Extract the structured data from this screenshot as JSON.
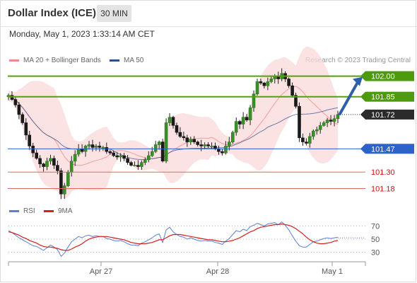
{
  "header": {
    "title": "Dollar Index (ICE)",
    "timeframe": "30 MIN",
    "datetime": "Monday, May 1, 2023 1:33:14 AM CET"
  },
  "legend": {
    "ma20_label": "MA 20 + Bollinger Bands",
    "ma20_color": "#f08a8a",
    "ma50_label": "MA 50",
    "ma50_color": "#2d4f8c",
    "research": "Research © 2023 Trading Central"
  },
  "rsi_legend": {
    "rsi_label": "RSI",
    "rsi_color": "#5b7fd4",
    "ma_label": "9MA",
    "ma_color": "#d42020"
  },
  "chart_data": [
    {
      "type": "candlestick",
      "title": "Dollar Index (ICE) 30 MIN",
      "x_ticks": [
        "Apr 27",
        "Apr 28",
        "May 1"
      ],
      "ylim": [
        101.1,
        102.06
      ],
      "levels": [
        {
          "value": 102.0,
          "label": "102.00",
          "kind": "resistance"
        },
        {
          "value": 101.85,
          "label": "101.85",
          "kind": "resistance"
        },
        {
          "value": 101.72,
          "label": "101.72",
          "kind": "last"
        },
        {
          "value": 101.47,
          "label": "101.47",
          "kind": "pivot"
        },
        {
          "value": 101.3,
          "label": "101.30",
          "kind": "support"
        },
        {
          "value": 101.18,
          "label": "101.18",
          "kind": "support"
        }
      ],
      "closes": [
        101.86,
        101.83,
        101.79,
        101.72,
        101.66,
        101.57,
        101.49,
        101.44,
        101.4,
        101.36,
        101.34,
        101.38,
        101.4,
        101.35,
        101.31,
        101.14,
        101.2,
        101.3,
        101.38,
        101.43,
        101.47,
        101.45,
        101.49,
        101.5,
        101.48,
        101.49,
        101.48,
        101.48,
        101.45,
        101.44,
        101.42,
        101.41,
        101.42,
        101.4,
        101.37,
        101.35,
        101.35,
        101.34,
        101.37,
        101.39,
        101.42,
        101.45,
        101.5,
        101.52,
        101.38,
        101.66,
        101.7,
        101.64,
        101.59,
        101.56,
        101.55,
        101.52,
        101.54,
        101.52,
        101.5,
        101.49,
        101.5,
        101.49,
        101.49,
        101.47,
        101.45,
        101.44,
        101.49,
        101.52,
        101.59,
        101.67,
        101.65,
        101.7,
        101.68,
        101.77,
        101.87,
        101.96,
        101.95,
        101.93,
        101.96,
        101.98,
        102.0,
        101.98,
        102.02,
        101.98,
        101.93,
        101.86,
        101.78,
        101.55,
        101.52,
        101.51,
        101.56,
        101.6,
        101.61,
        101.64,
        101.66,
        101.68,
        101.67,
        101.69,
        101.72
      ],
      "series": [
        {
          "name": "MA 20 + Bollinger Bands"
        },
        {
          "name": "MA 50"
        }
      ],
      "forecast_arrow": {
        "from": 101.72,
        "to": 102.0
      }
    },
    {
      "type": "line",
      "title": "RSI",
      "yticks": [
        70,
        50,
        30
      ],
      "ylim": [
        20,
        80
      ],
      "series": [
        {
          "name": "RSI",
          "values": [
            63,
            60,
            56,
            52,
            49,
            46,
            43,
            40,
            39,
            36,
            33,
            37,
            41,
            38,
            34,
            24,
            29,
            38,
            46,
            50,
            54,
            52,
            55,
            56,
            54,
            55,
            54,
            54,
            51,
            50,
            48,
            47,
            48,
            46,
            43,
            41,
            41,
            40,
            44,
            46,
            49,
            52,
            56,
            58,
            45,
            64,
            68,
            61,
            57,
            54,
            53,
            50,
            52,
            50,
            48,
            47,
            48,
            47,
            47,
            45,
            44,
            42,
            47,
            51,
            57,
            63,
            61,
            65,
            63,
            69,
            71,
            74,
            72,
            70,
            73,
            74,
            75,
            72,
            76,
            71,
            64,
            55,
            47,
            40,
            38,
            38,
            42,
            46,
            47,
            49,
            51,
            52,
            51,
            52,
            53
          ]
        },
        {
          "name": "9MA",
          "values": [
            61,
            60,
            58,
            56,
            53,
            51,
            48,
            46,
            44,
            41,
            39,
            38,
            38,
            37,
            36,
            34,
            33,
            33,
            35,
            38,
            40,
            43,
            47,
            50,
            52,
            53,
            54,
            54,
            54,
            53,
            52,
            51,
            50,
            49,
            47,
            45,
            44,
            43,
            43,
            43,
            44,
            45,
            47,
            49,
            49,
            52,
            55,
            57,
            57,
            57,
            56,
            55,
            54,
            53,
            52,
            51,
            50,
            49,
            49,
            48,
            47,
            46,
            46,
            47,
            48,
            50,
            52,
            55,
            58,
            61,
            63,
            66,
            68,
            69,
            70,
            71,
            72,
            72,
            73,
            72,
            71,
            69,
            66,
            62,
            58,
            53,
            49,
            46,
            44,
            43,
            43,
            44,
            45,
            47,
            48
          ]
        }
      ]
    }
  ]
}
